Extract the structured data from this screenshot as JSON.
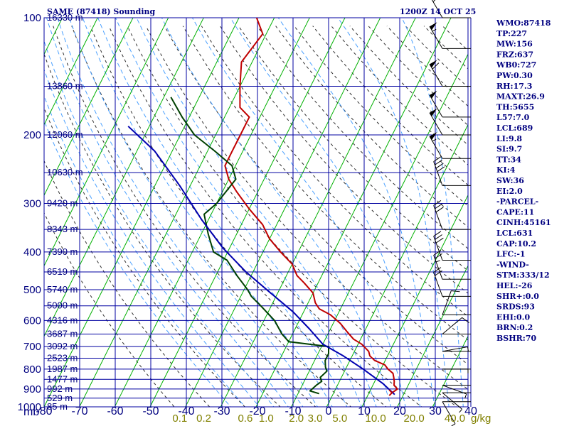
{
  "chart_data": {
    "type": "line",
    "title": "SAME (87418) Sounding",
    "time_label": "1200Z 14 OCT 25",
    "x_unit_label": "mb",
    "x_range": [
      -80,
      40
    ],
    "x_ticks": [
      "-80",
      "-70",
      "-60",
      "-50",
      "-40",
      "-30",
      "-20",
      "-10",
      "0",
      "10",
      "20",
      "30",
      "40"
    ],
    "y_range": [
      1000,
      100
    ],
    "y_scale": "log",
    "pressure_ticks": [
      "100",
      "200",
      "300",
      "400",
      "500",
      "600",
      "700",
      "800",
      "900",
      "1000"
    ],
    "height_labels": [
      {
        "p": 100,
        "text": "16330 m"
      },
      {
        "p": 150,
        "text": "13860 m"
      },
      {
        "p": 200,
        "text": "12060 m"
      },
      {
        "p": 250,
        "text": "10630 m"
      },
      {
        "p": 300,
        "text": "9420 m"
      },
      {
        "p": 350,
        "text": "8343 m"
      },
      {
        "p": 400,
        "text": "7390 m"
      },
      {
        "p": 450,
        "text": "6519 m"
      },
      {
        "p": 500,
        "text": "5740 m"
      },
      {
        "p": 550,
        "text": "5000 m"
      },
      {
        "p": 600,
        "text": "4316 m"
      },
      {
        "p": 650,
        "text": "3687 m"
      },
      {
        "p": 700,
        "text": "3092 m"
      },
      {
        "p": 750,
        "text": "2523 m"
      },
      {
        "p": 800,
        "text": "1987 m"
      },
      {
        "p": 850,
        "text": "1477 m"
      },
      {
        "p": 900,
        "text": "992 m"
      },
      {
        "p": 950,
        "text": "529 m"
      },
      {
        "p": 1000,
        "text": "85 m"
      }
    ],
    "mixing_ratio_label_values": [
      0.1,
      0.2,
      0.6,
      1.0,
      2.0,
      3.0,
      5.0,
      10.0,
      20.0,
      40.0
    ],
    "mixing_ratio_labels": [
      "0.1",
      "0.2",
      "0.6",
      "1.0",
      "2.0",
      "3.0",
      "5.0",
      "10.0",
      "20.0",
      "40.0"
    ],
    "mixing_ratio_unit": "g/kg",
    "colors": {
      "grid": "#0000a0",
      "isotherm": "#00b000",
      "dry_adiabat": "#303030",
      "moist_adiabat": "#4aa0ff",
      "temperature": "#c00000",
      "dewpoint": "#004000",
      "parcel": "#0000b0",
      "mixing_label": "#808000",
      "text": "#000080"
    },
    "series": [
      {
        "key": "temperature",
        "points": [
          [
            16.5,
            920
          ],
          [
            17.5,
            900
          ],
          [
            16,
            880
          ],
          [
            15.5,
            860
          ],
          [
            14.8,
            840
          ],
          [
            14,
            820
          ],
          [
            12,
            800
          ],
          [
            10.5,
            780
          ],
          [
            7,
            760
          ],
          [
            5,
            740
          ],
          [
            4,
            720
          ],
          [
            1,
            690
          ],
          [
            -2,
            670
          ],
          [
            -5,
            640
          ],
          [
            -8,
            610
          ],
          [
            -12,
            580
          ],
          [
            -16,
            560
          ],
          [
            -18,
            540
          ],
          [
            -20,
            510
          ],
          [
            -24,
            480
          ],
          [
            -27,
            460
          ],
          [
            -30,
            430
          ],
          [
            -35,
            400
          ],
          [
            -40,
            370
          ],
          [
            -44,
            340
          ],
          [
            -50,
            310
          ],
          [
            -56,
            280
          ],
          [
            -60,
            260
          ],
          [
            -63,
            240
          ],
          [
            -63,
            220
          ],
          [
            -63,
            200
          ],
          [
            -63,
            180
          ],
          [
            -67,
            170
          ],
          [
            -70,
            150
          ],
          [
            -73,
            130
          ],
          [
            -71,
            110
          ],
          [
            -75,
            100
          ]
        ]
      },
      {
        "key": "dewpoint",
        "points": [
          [
            -4,
            925
          ],
          [
            -7,
            910
          ],
          [
            -6,
            880
          ],
          [
            -5,
            860
          ],
          [
            -6,
            840
          ],
          [
            -5,
            810
          ],
          [
            -6,
            790
          ],
          [
            -7,
            760
          ],
          [
            -7,
            730
          ],
          [
            -8,
            700
          ],
          [
            -20,
            680
          ],
          [
            -23,
            650
          ],
          [
            -27,
            600
          ],
          [
            -33,
            550
          ],
          [
            -37,
            520
          ],
          [
            -39,
            500
          ],
          [
            -44,
            460
          ],
          [
            -49,
            420
          ],
          [
            -54,
            400
          ],
          [
            -58,
            360
          ],
          [
            -62,
            320
          ],
          [
            -60,
            300
          ],
          [
            -58,
            260
          ],
          [
            -61,
            240
          ],
          [
            -68,
            220
          ],
          [
            -76,
            200
          ],
          [
            -82,
            180
          ],
          [
            -88,
            160
          ]
        ]
      },
      {
        "key": "parcel",
        "points": [
          [
            17.5,
            930
          ],
          [
            12.5,
            870
          ],
          [
            5,
            800
          ],
          [
            -2.5,
            740
          ],
          [
            -10,
            690
          ],
          [
            -16,
            630
          ],
          [
            -23,
            570
          ],
          [
            -32,
            510
          ],
          [
            -42,
            450
          ],
          [
            -52,
            390
          ],
          [
            -62,
            330
          ],
          [
            -73,
            270
          ],
          [
            -85,
            220
          ],
          [
            -96,
            190
          ]
        ]
      }
    ],
    "wind_barbs": [
      {
        "p": 100,
        "dir": 330,
        "kt": 30
      },
      {
        "p": 120,
        "dir": 330,
        "kt": 55
      },
      {
        "p": 150,
        "dir": 330,
        "kt": 60
      },
      {
        "p": 180,
        "dir": 330,
        "kt": 50
      },
      {
        "p": 200,
        "dir": 330,
        "kt": 50
      },
      {
        "p": 230,
        "dir": 330,
        "kt": 55
      },
      {
        "p": 270,
        "dir": 340,
        "kt": 40
      },
      {
        "p": 350,
        "dir": 340,
        "kt": 30
      },
      {
        "p": 420,
        "dir": 340,
        "kt": 30
      },
      {
        "p": 470,
        "dir": 340,
        "kt": 25
      },
      {
        "p": 520,
        "dir": 340,
        "kt": 20
      },
      {
        "p": 580,
        "dir": 20,
        "kt": 10
      },
      {
        "p": 650,
        "dir": 50,
        "kt": 10
      },
      {
        "p": 720,
        "dir": 80,
        "kt": 5
      },
      {
        "p": 800,
        "dir": 90,
        "kt": 5
      },
      {
        "p": 880,
        "dir": 110,
        "kt": 5
      },
      {
        "p": 920,
        "dir": 130,
        "kt": 5
      },
      {
        "p": 970,
        "dir": 150,
        "kt": 5
      }
    ],
    "indices": [
      "WMO:87418",
      "TP:227",
      "MW:156",
      "FRZ:637",
      "WB0:727",
      "PW:0.30",
      "RH:17.3",
      "MAXT:26.9",
      "TH:5655",
      "L57:7.0",
      "LCL:689",
      "LI:9.8",
      "SI:9.7",
      "TT:34",
      "KI:4",
      "SW:36",
      "EI:2.0",
      "-PARCEL-",
      "CAPE:11",
      "CINH:45161",
      "LCL:631",
      "CAP:10.2",
      "LFC:-1",
      "-WIND-",
      "STM:333/12",
      "HEL:-26",
      "SHR+:0.0",
      "SRDS:93",
      "EHI:0.0",
      "BRN:0.2",
      "BSHR:70"
    ]
  }
}
